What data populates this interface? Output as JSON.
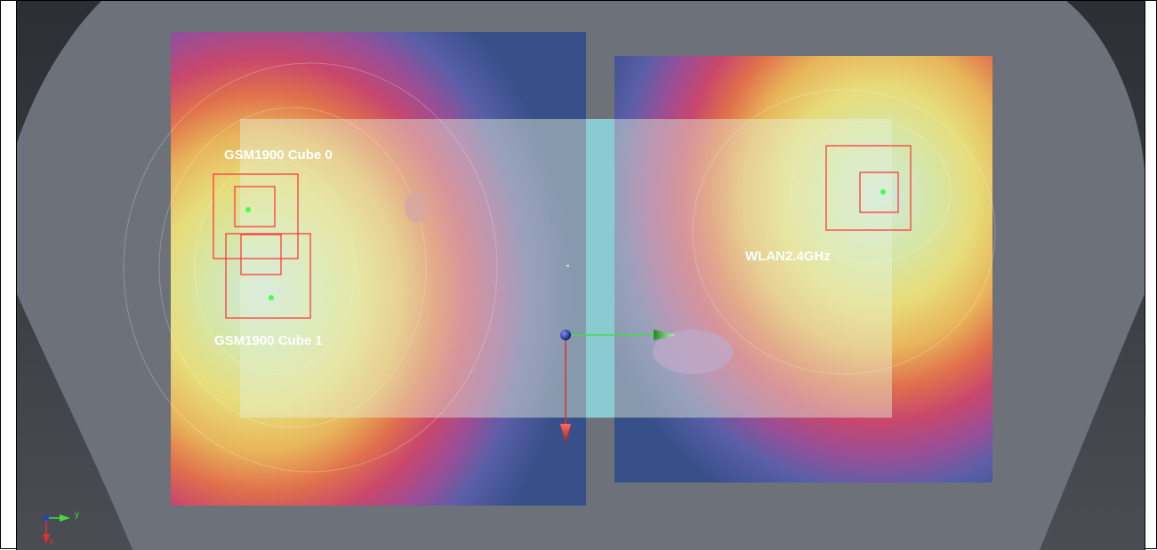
{
  "scan_labels": {
    "cube0": "GSM1900 Cube 0",
    "cube1": "GSM1900 Cube 1",
    "wlan": "WLAN2.4GHz"
  },
  "triad": {
    "axis_y": "y",
    "axis_x": "x"
  },
  "colors": {
    "background_outer": "#3a3c41",
    "phantom": "#6b717b",
    "scan_overlay": "#d8ecd0",
    "overlay_strip": "#7fc8d4",
    "cube_outline": "#ff3a3a",
    "peak_point": "#44ff44",
    "axis_y": "#44dd44",
    "axis_x": "#e03030",
    "origin": "#2233aa"
  }
}
